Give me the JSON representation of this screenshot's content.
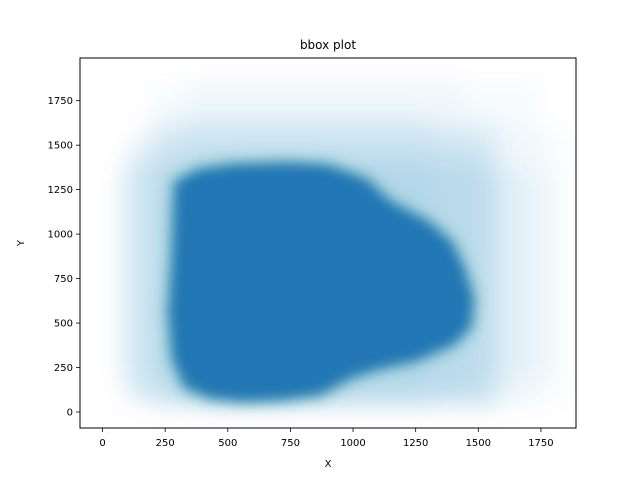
{
  "chart_data": {
    "type": "scatter",
    "title": "bbox plot",
    "xlabel": "X",
    "ylabel": "Y",
    "xlim": [
      -90,
      1890
    ],
    "ylim": [
      -90,
      1990
    ],
    "xticks": [
      0,
      250,
      500,
      750,
      1000,
      1250,
      1500,
      1750
    ],
    "yticks": [
      0,
      250,
      500,
      750,
      1000,
      1250,
      1500,
      1750
    ],
    "grid": false,
    "color": "#2077b4",
    "core_outline": [
      [
        290,
        1290
      ],
      [
        380,
        1360
      ],
      [
        520,
        1390
      ],
      [
        750,
        1400
      ],
      [
        900,
        1385
      ],
      [
        1050,
        1310
      ],
      [
        1150,
        1180
      ],
      [
        1300,
        1070
      ],
      [
        1390,
        960
      ],
      [
        1440,
        820
      ],
      [
        1480,
        640
      ],
      [
        1470,
        480
      ],
      [
        1400,
        380
      ],
      [
        1250,
        290
      ],
      [
        1120,
        250
      ],
      [
        1000,
        200
      ],
      [
        870,
        100
      ],
      [
        720,
        70
      ],
      [
        560,
        60
      ],
      [
        430,
        80
      ],
      [
        330,
        140
      ],
      [
        280,
        300
      ],
      [
        265,
        560
      ],
      [
        280,
        900
      ],
      [
        285,
        1150
      ]
    ],
    "halo_rects": [
      [
        80,
        70,
        1570,
        1450
      ],
      [
        120,
        30,
        1540,
        1550
      ],
      [
        200,
        10,
        1600,
        1650
      ],
      [
        60,
        120,
        1680,
        1400
      ],
      [
        260,
        0,
        1300,
        1700
      ],
      [
        40,
        200,
        1800,
        1350
      ],
      [
        330,
        20,
        1750,
        1880
      ],
      [
        100,
        60,
        1850,
        1600
      ],
      [
        180,
        100,
        1450,
        1850
      ]
    ]
  }
}
